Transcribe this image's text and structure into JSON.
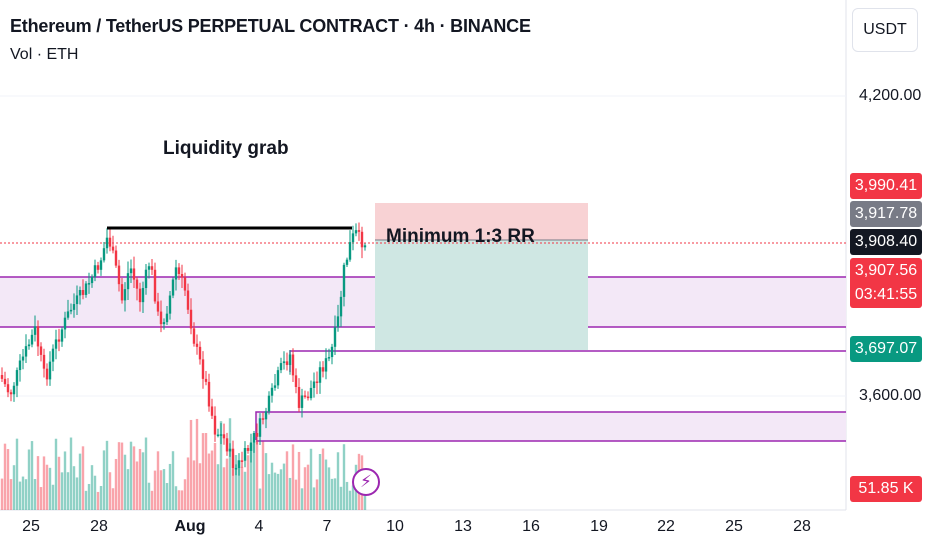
{
  "header": {
    "title": "Ethereum / TetherUS PERPETUAL CONTRACT · 4h · BINANCE",
    "volume_label": "Vol · ETH"
  },
  "price_axis": {
    "currency": "USDT",
    "ticks": [
      "4,200.00",
      "3,600.00"
    ],
    "badges": {
      "stop": {
        "value": "3,990.41",
        "color": "#f23645"
      },
      "entry": {
        "value": "3,917.78",
        "color": "#787b86"
      },
      "last": {
        "value": "3,908.40",
        "color": "#131722"
      },
      "current": {
        "value": "3,907.56",
        "countdown": "03:41:55",
        "color": "#f23645"
      },
      "target": {
        "value": "3,697.07",
        "color": "#089981"
      },
      "volume": {
        "value": "51.85 K",
        "color": "#f23645"
      }
    }
  },
  "time_axis": {
    "labels": [
      "25",
      "28",
      "Aug",
      "4",
      "7",
      "10",
      "13",
      "16",
      "19",
      "22",
      "25",
      "28"
    ]
  },
  "annotations": {
    "liquidity": "Liquidity grab",
    "rr": "Minimum 1:3 RR"
  },
  "colors": {
    "up": "#089981",
    "down": "#f23645",
    "zone_line": "#9c27b0",
    "zone_fill": "#f3e8f7",
    "stop_fill": "#f8d2d4",
    "target_fill": "#cfe7e3"
  },
  "icons": {
    "flash": "lightning-bolt-icon"
  }
}
